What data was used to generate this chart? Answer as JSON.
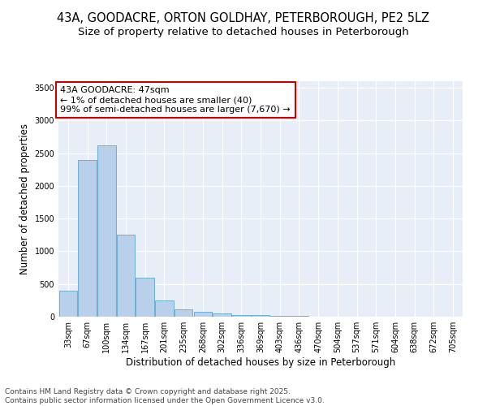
{
  "title_line1": "43A, GOODACRE, ORTON GOLDHAY, PETERBOROUGH, PE2 5LZ",
  "title_line2": "Size of property relative to detached houses in Peterborough",
  "xlabel": "Distribution of detached houses by size in Peterborough",
  "ylabel": "Number of detached properties",
  "annotation_title": "43A GOODACRE: 47sqm",
  "annotation_line2": "← 1% of detached houses are smaller (40)",
  "annotation_line3": "99% of semi-detached houses are larger (7,670) →",
  "footer_line1": "Contains HM Land Registry data © Crown copyright and database right 2025.",
  "footer_line2": "Contains public sector information licensed under the Open Government Licence v3.0.",
  "categories": [
    "33sqm",
    "67sqm",
    "100sqm",
    "134sqm",
    "167sqm",
    "201sqm",
    "235sqm",
    "268sqm",
    "302sqm",
    "336sqm",
    "369sqm",
    "403sqm",
    "436sqm",
    "470sqm",
    "504sqm",
    "537sqm",
    "571sqm",
    "604sqm",
    "638sqm",
    "672sqm",
    "705sqm"
  ],
  "values": [
    400,
    2400,
    2620,
    1250,
    600,
    250,
    110,
    80,
    55,
    30,
    20,
    10,
    8,
    5,
    3,
    2,
    1,
    1,
    0,
    0,
    0
  ],
  "bar_color": "#b8d0ea",
  "bar_edge_color": "#6aaed6",
  "annotation_box_color": "#cc0000",
  "annotation_box_fill": "#ffffff",
  "fig_bg_color": "#ffffff",
  "axes_bg_color": "#e8eef8",
  "grid_color": "#ffffff",
  "ylim": [
    0,
    3600
  ],
  "yticks": [
    0,
    500,
    1000,
    1500,
    2000,
    2500,
    3000,
    3500
  ],
  "title_fontsize": 10.5,
  "subtitle_fontsize": 9.5,
  "axis_label_fontsize": 8.5,
  "tick_fontsize": 7,
  "annotation_fontsize": 8,
  "footer_fontsize": 6.5
}
